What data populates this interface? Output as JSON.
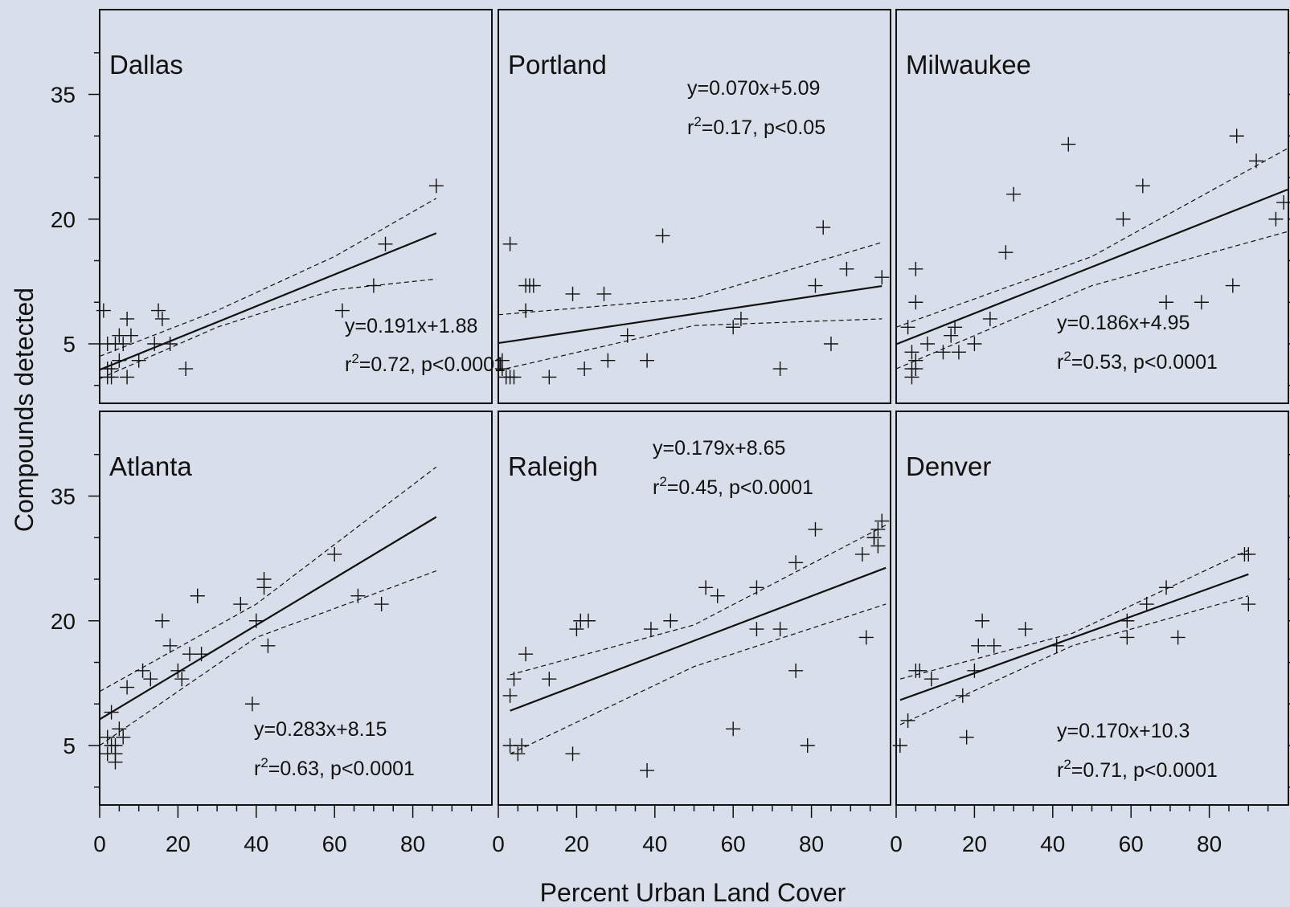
{
  "chart_data": {
    "type": "scatter",
    "xlabel": "Percent Urban Land Cover",
    "ylabel": "Compounds detected",
    "x_ticks": [
      0,
      20,
      40,
      60,
      80
    ],
    "y_ticks": [
      5,
      20,
      35
    ],
    "xlim": [
      0,
      100
    ],
    "ylim": [
      -2,
      44
    ],
    "layout": "2 rows x 3 columns",
    "panels": [
      {
        "city": "Dallas",
        "equation": "y=0.191x+1.88",
        "stats": "r2=0.72, p<0.0001",
        "r2_label": "=0.72, p<0.0001",
        "slope": 0.191,
        "intercept": 1.88,
        "fit_x": [
          0,
          86
        ],
        "band_upper": [
          [
            0,
            3.5
          ],
          [
            30,
            9.0
          ],
          [
            60,
            15.5
          ],
          [
            86,
            22.5
          ]
        ],
        "band_lower": [
          [
            0,
            0.8
          ],
          [
            30,
            7.0
          ],
          [
            60,
            11.5
          ],
          [
            86,
            12.8
          ]
        ],
        "points": [
          [
            1,
            9
          ],
          [
            2,
            5
          ],
          [
            2,
            2
          ],
          [
            2,
            1
          ],
          [
            3,
            2
          ],
          [
            3,
            1
          ],
          [
            4,
            5
          ],
          [
            5,
            3
          ],
          [
            5,
            6
          ],
          [
            6,
            5
          ],
          [
            7,
            1
          ],
          [
            7,
            8
          ],
          [
            8,
            6
          ],
          [
            10,
            3
          ],
          [
            14,
            5
          ],
          [
            15,
            9
          ],
          [
            16,
            8
          ],
          [
            18,
            5
          ],
          [
            22,
            2
          ],
          [
            62,
            9
          ],
          [
            70,
            12
          ],
          [
            73,
            17
          ],
          [
            86,
            24
          ]
        ]
      },
      {
        "city": "Portland",
        "equation": "y=0.070x+5.09",
        "stats": "r2=0.17, p<0.05",
        "r2_label": "=0.17, p<0.05",
        "slope": 0.07,
        "intercept": 5.09,
        "fit_x": [
          0,
          98
        ],
        "band_upper": [
          [
            0,
            8.5
          ],
          [
            50,
            10.5
          ],
          [
            98,
            17.2
          ]
        ],
        "band_lower": [
          [
            0,
            1.8
          ],
          [
            50,
            7.2
          ],
          [
            98,
            8.0
          ]
        ],
        "points": [
          [
            0,
            6
          ],
          [
            0,
            2
          ],
          [
            1,
            3
          ],
          [
            1,
            2
          ],
          [
            2,
            1
          ],
          [
            3,
            1
          ],
          [
            3,
            17
          ],
          [
            4,
            1
          ],
          [
            7,
            9
          ],
          [
            7,
            12
          ],
          [
            8,
            12
          ],
          [
            9,
            12
          ],
          [
            13,
            1
          ],
          [
            19,
            11
          ],
          [
            22,
            2
          ],
          [
            27,
            11
          ],
          [
            28,
            3
          ],
          [
            33,
            6
          ],
          [
            38,
            3
          ],
          [
            42,
            18
          ],
          [
            60,
            7
          ],
          [
            62,
            8
          ],
          [
            72,
            2
          ],
          [
            81,
            12
          ],
          [
            83,
            19
          ],
          [
            85,
            5
          ],
          [
            89,
            14
          ],
          [
            98,
            13
          ]
        ]
      },
      {
        "city": "Milwaukee",
        "equation": "y=0.186x+4.95",
        "stats": "r2=0.53, p<0.0001",
        "r2_label": "=0.53, p<0.0001",
        "slope": 0.186,
        "intercept": 4.95,
        "fit_x": [
          0,
          100
        ],
        "band_upper": [
          [
            0,
            7.0
          ],
          [
            50,
            15.5
          ],
          [
            100,
            28.5
          ]
        ],
        "band_lower": [
          [
            0,
            2.0
          ],
          [
            50,
            12.0
          ],
          [
            100,
            18.5
          ]
        ],
        "points": [
          [
            0,
            5
          ],
          [
            3,
            7
          ],
          [
            4,
            2
          ],
          [
            4,
            1
          ],
          [
            4,
            4
          ],
          [
            5,
            3
          ],
          [
            5,
            2
          ],
          [
            5,
            10
          ],
          [
            5,
            14
          ],
          [
            8,
            5
          ],
          [
            12,
            4
          ],
          [
            14,
            6
          ],
          [
            15,
            7
          ],
          [
            16,
            4
          ],
          [
            20,
            5
          ],
          [
            24,
            8
          ],
          [
            28,
            16
          ],
          [
            30,
            23
          ],
          [
            44,
            29
          ],
          [
            58,
            20
          ],
          [
            63,
            24
          ],
          [
            69,
            10
          ],
          [
            78,
            10
          ],
          [
            86,
            12
          ],
          [
            87,
            30
          ],
          [
            92,
            27
          ],
          [
            97,
            20
          ],
          [
            99,
            22
          ]
        ]
      },
      {
        "city": "Atlanta",
        "equation": "y=0.283x+8.15",
        "stats": "r2=0.63, p<0.0001",
        "r2_label": "=0.63, p<0.0001",
        "slope": 0.283,
        "intercept": 8.15,
        "fit_x": [
          0,
          86
        ],
        "band_upper": [
          [
            0,
            11.5
          ],
          [
            40,
            22.0
          ],
          [
            86,
            38.5
          ]
        ],
        "band_lower": [
          [
            0,
            5.0
          ],
          [
            40,
            18.0
          ],
          [
            86,
            26.0
          ]
        ],
        "points": [
          [
            2,
            6
          ],
          [
            2,
            4
          ],
          [
            3,
            5
          ],
          [
            3,
            9
          ],
          [
            4,
            3
          ],
          [
            4,
            4
          ],
          [
            4,
            5
          ],
          [
            5,
            7
          ],
          [
            6,
            6
          ],
          [
            7,
            12
          ],
          [
            11,
            14
          ],
          [
            13,
            13
          ],
          [
            16,
            20
          ],
          [
            18,
            17
          ],
          [
            20,
            14
          ],
          [
            21,
            13
          ],
          [
            23,
            16
          ],
          [
            25,
            23
          ],
          [
            25,
            23
          ],
          [
            26,
            16
          ],
          [
            36,
            22
          ],
          [
            40,
            20
          ],
          [
            42,
            25
          ],
          [
            42,
            24
          ],
          [
            43,
            17
          ],
          [
            39,
            10
          ],
          [
            60,
            28
          ],
          [
            66,
            23
          ],
          [
            72,
            22
          ]
        ]
      },
      {
        "city": "Raleigh",
        "equation": "y=0.179x+8.65",
        "stats": "r2=0.45, p<0.0001",
        "r2_label": "=0.45, p<0.0001",
        "slope": 0.179,
        "intercept": 8.65,
        "fit_x": [
          3,
          99
        ],
        "band_upper": [
          [
            3,
            13.5
          ],
          [
            50,
            19.5
          ],
          [
            99,
            31.5
          ]
        ],
        "band_lower": [
          [
            3,
            4.0
          ],
          [
            50,
            14.5
          ],
          [
            99,
            22.0
          ]
        ],
        "points": [
          [
            3,
            11
          ],
          [
            3,
            5
          ],
          [
            4,
            13
          ],
          [
            5,
            4
          ],
          [
            6,
            5
          ],
          [
            7,
            16
          ],
          [
            13,
            13
          ],
          [
            19,
            4
          ],
          [
            20,
            19
          ],
          [
            21,
            20
          ],
          [
            23,
            20
          ],
          [
            38,
            2
          ],
          [
            39,
            19
          ],
          [
            44,
            20
          ],
          [
            53,
            24
          ],
          [
            56,
            23
          ],
          [
            60,
            7
          ],
          [
            66,
            24
          ],
          [
            66,
            19
          ],
          [
            72,
            19
          ],
          [
            76,
            27
          ],
          [
            76,
            14
          ],
          [
            79,
            5
          ],
          [
            81,
            31
          ],
          [
            93,
            28
          ],
          [
            94,
            18
          ],
          [
            96,
            30
          ],
          [
            96,
            30
          ],
          [
            97,
            29
          ],
          [
            97,
            31
          ],
          [
            98,
            32
          ]
        ]
      },
      {
        "city": "Denver",
        "equation": "y=0.170x+10.3",
        "stats": "r2=0.71, p<0.0001",
        "r2_label": "=0.71, p<0.0001",
        "slope": 0.17,
        "intercept": 10.3,
        "fit_x": [
          1,
          90
        ],
        "band_upper": [
          [
            1,
            13.0
          ],
          [
            45,
            18.5
          ],
          [
            90,
            28.5
          ]
        ],
        "band_lower": [
          [
            1,
            7.5
          ],
          [
            45,
            17.0
          ],
          [
            90,
            23.0
          ]
        ],
        "points": [
          [
            1,
            5
          ],
          [
            3,
            8
          ],
          [
            5,
            14
          ],
          [
            6,
            14
          ],
          [
            9,
            13
          ],
          [
            17,
            11
          ],
          [
            18,
            6
          ],
          [
            20,
            14
          ],
          [
            21,
            17
          ],
          [
            22,
            20
          ],
          [
            25,
            17
          ],
          [
            33,
            19
          ],
          [
            41,
            17
          ],
          [
            59,
            20
          ],
          [
            59,
            18
          ],
          [
            64,
            22
          ],
          [
            69,
            24
          ],
          [
            72,
            18
          ],
          [
            89,
            28
          ],
          [
            90,
            28
          ],
          [
            90,
            22
          ]
        ]
      }
    ]
  }
}
